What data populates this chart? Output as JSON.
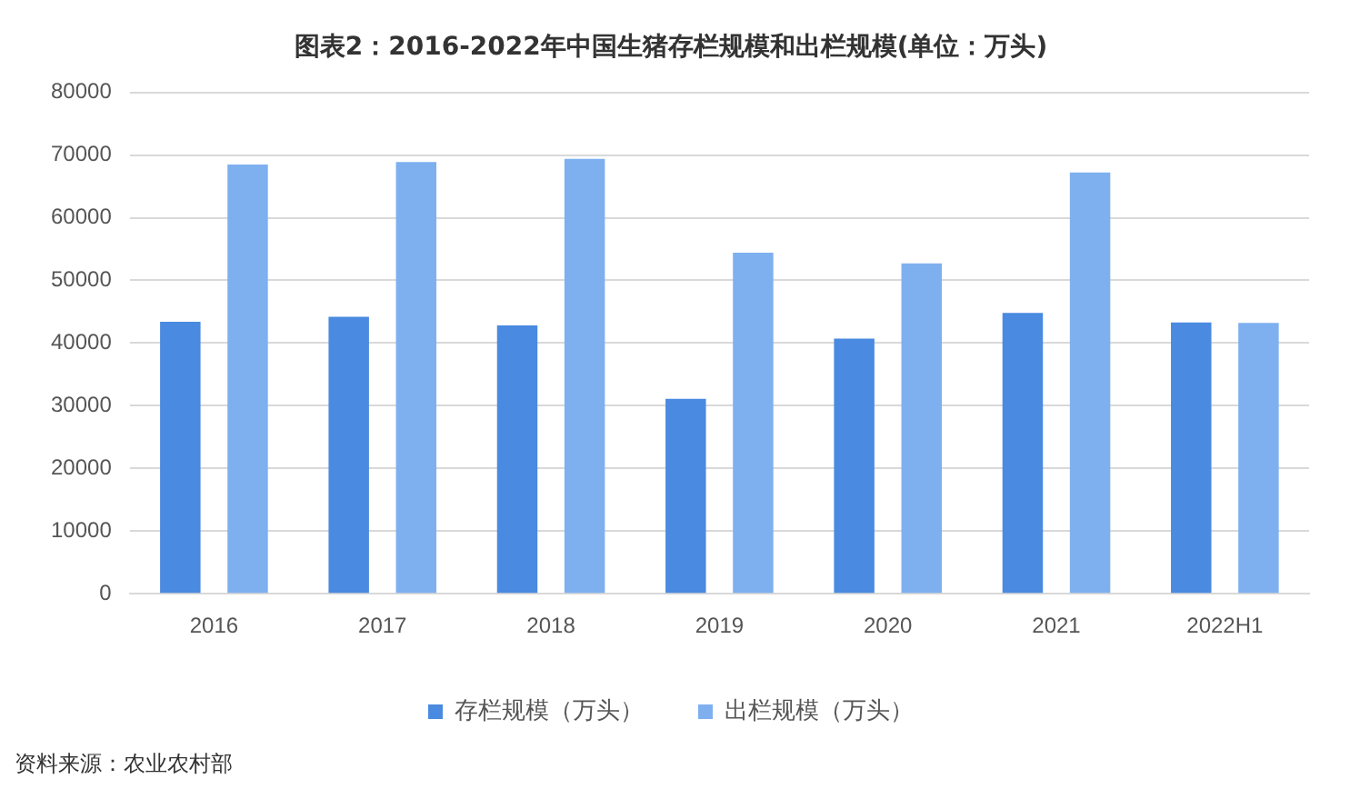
{
  "chart_data": {
    "type": "bar",
    "title": "图表2：2016-2022年中国生猪存栏规模和出栏规模(单位：万头)",
    "categories": [
      "2016",
      "2017",
      "2018",
      "2019",
      "2020",
      "2021",
      "2022H1"
    ],
    "series": [
      {
        "name": "存栏规模（万头）",
        "color": "#4a8ae0",
        "values": [
          43400,
          44200,
          42800,
          31100,
          40700,
          44800,
          43300
        ]
      },
      {
        "name": "出栏规模（万头）",
        "color": "#7eb0f0",
        "values": [
          68500,
          68900,
          69400,
          54400,
          52700,
          67200,
          43200
        ]
      }
    ],
    "ylim": [
      0,
      80000
    ],
    "yticks": [
      0,
      10000,
      20000,
      30000,
      40000,
      50000,
      60000,
      70000,
      80000
    ],
    "grid": "y",
    "legend": "bottom",
    "annotations": [
      "资料来源：农业农村部"
    ]
  }
}
